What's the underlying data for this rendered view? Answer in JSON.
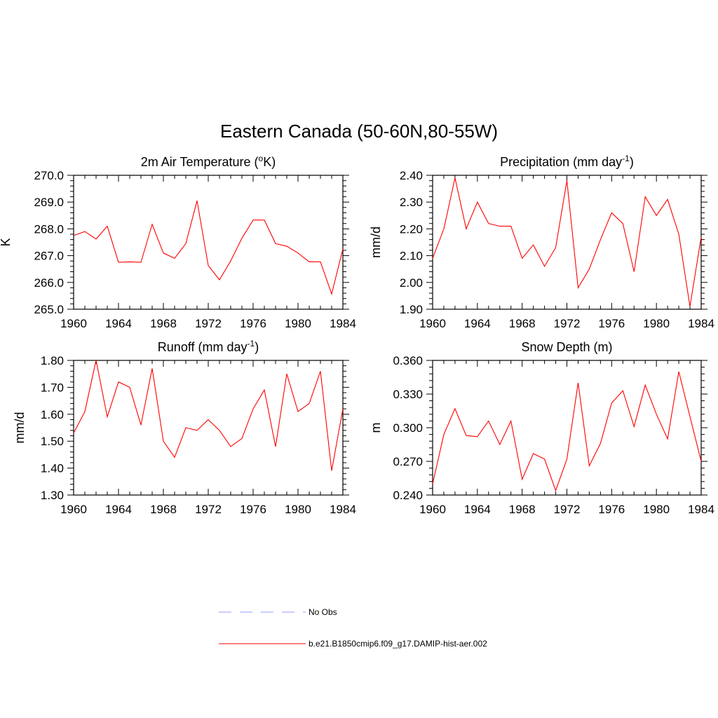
{
  "figure": {
    "title": "Eastern Canada (50-60N,80-55W)"
  },
  "colors": {
    "model_line": "#ff0000",
    "obs_line": "#9999ff",
    "axis": "#000000"
  },
  "legend": {
    "entries": [
      {
        "label": "No Obs",
        "style": "dashed",
        "color": "#9999ff"
      },
      {
        "label": "b.e21.B1850cmip6.f09_g17.DAMIP-hist-aer.002",
        "style": "solid",
        "color": "#ff0000"
      }
    ]
  },
  "chart_data": [
    {
      "type": "line",
      "title_main": "2m Air Temperature (",
      "title_sup": "o",
      "title_end": "K)",
      "ylabel": "K",
      "xlim": [
        1960,
        1984
      ],
      "ylim": [
        265.0,
        270.0
      ],
      "xticks": [
        1960,
        1964,
        1968,
        1972,
        1976,
        1980,
        1984
      ],
      "yticks": [
        "265.0",
        "266.0",
        "267.0",
        "268.0",
        "269.0",
        "270.0"
      ],
      "x": [
        1960,
        1961,
        1962,
        1963,
        1964,
        1965,
        1966,
        1967,
        1968,
        1969,
        1970,
        1971,
        1972,
        1973,
        1974,
        1975,
        1976,
        1977,
        1978,
        1979,
        1980,
        1981,
        1982,
        1983,
        1984
      ],
      "series": [
        {
          "values": [
            267.75,
            267.9,
            267.62,
            268.1,
            266.75,
            266.77,
            266.75,
            268.17,
            267.1,
            266.9,
            267.45,
            269.05,
            266.63,
            266.1,
            266.8,
            267.65,
            268.33,
            268.33,
            267.45,
            267.35,
            267.1,
            266.77,
            266.77,
            265.57,
            267.25
          ]
        }
      ]
    },
    {
      "type": "line",
      "title_main": "Precipitation (mm day",
      "title_sup": "-1",
      "title_end": ")",
      "ylabel": "mm/d",
      "xlim": [
        1960,
        1984
      ],
      "ylim": [
        1.9,
        2.4
      ],
      "xticks": [
        1960,
        1964,
        1968,
        1972,
        1976,
        1980,
        1984
      ],
      "yticks": [
        "1.90",
        "2.00",
        "2.10",
        "2.20",
        "2.30",
        "2.40"
      ],
      "x": [
        1960,
        1961,
        1962,
        1963,
        1964,
        1965,
        1966,
        1967,
        1968,
        1969,
        1970,
        1971,
        1972,
        1973,
        1974,
        1975,
        1976,
        1977,
        1978,
        1979,
        1980,
        1981,
        1982,
        1983,
        1984
      ],
      "series": [
        {
          "values": [
            2.09,
            2.2,
            2.39,
            2.2,
            2.3,
            2.22,
            2.21,
            2.21,
            2.09,
            2.14,
            2.06,
            2.13,
            2.38,
            1.98,
            2.05,
            2.16,
            2.26,
            2.22,
            2.04,
            2.32,
            2.25,
            2.31,
            2.18,
            1.91,
            2.17
          ]
        }
      ]
    },
    {
      "type": "line",
      "title_main": "Runoff (mm day",
      "title_sup": "-1",
      "title_end": ")",
      "ylabel": "mm/d",
      "xlim": [
        1960,
        1984
      ],
      "ylim": [
        1.3,
        1.8
      ],
      "xticks": [
        1960,
        1964,
        1968,
        1972,
        1976,
        1980,
        1984
      ],
      "yticks": [
        "1.30",
        "1.40",
        "1.50",
        "1.60",
        "1.70",
        "1.80"
      ],
      "x": [
        1960,
        1961,
        1962,
        1963,
        1964,
        1965,
        1966,
        1967,
        1968,
        1969,
        1970,
        1971,
        1972,
        1973,
        1974,
        1975,
        1976,
        1977,
        1978,
        1979,
        1980,
        1981,
        1982,
        1983,
        1984
      ],
      "series": [
        {
          "values": [
            1.53,
            1.61,
            1.8,
            1.59,
            1.72,
            1.7,
            1.56,
            1.77,
            1.5,
            1.44,
            1.55,
            1.54,
            1.58,
            1.54,
            1.48,
            1.51,
            1.62,
            1.69,
            1.48,
            1.75,
            1.61,
            1.64,
            1.76,
            1.39,
            1.62
          ]
        }
      ]
    },
    {
      "type": "line",
      "title_main": "Snow Depth (m)",
      "title_sup": "",
      "title_end": "",
      "ylabel": "m",
      "xlim": [
        1960,
        1984
      ],
      "ylim": [
        0.24,
        0.36
      ],
      "xticks": [
        1960,
        1964,
        1968,
        1972,
        1976,
        1980,
        1984
      ],
      "yticks": [
        "0.240",
        "0.270",
        "0.300",
        "0.330",
        "0.360"
      ],
      "x": [
        1960,
        1961,
        1962,
        1963,
        1964,
        1965,
        1966,
        1967,
        1968,
        1969,
        1970,
        1971,
        1972,
        1973,
        1974,
        1975,
        1976,
        1977,
        1978,
        1979,
        1980,
        1981,
        1982,
        1983,
        1984
      ],
      "series": [
        {
          "values": [
            0.25,
            0.294,
            0.317,
            0.293,
            0.292,
            0.306,
            0.285,
            0.306,
            0.254,
            0.277,
            0.272,
            0.244,
            0.272,
            0.34,
            0.266,
            0.286,
            0.322,
            0.333,
            0.301,
            0.338,
            0.312,
            0.29,
            0.35,
            0.31,
            0.27
          ]
        }
      ]
    }
  ]
}
